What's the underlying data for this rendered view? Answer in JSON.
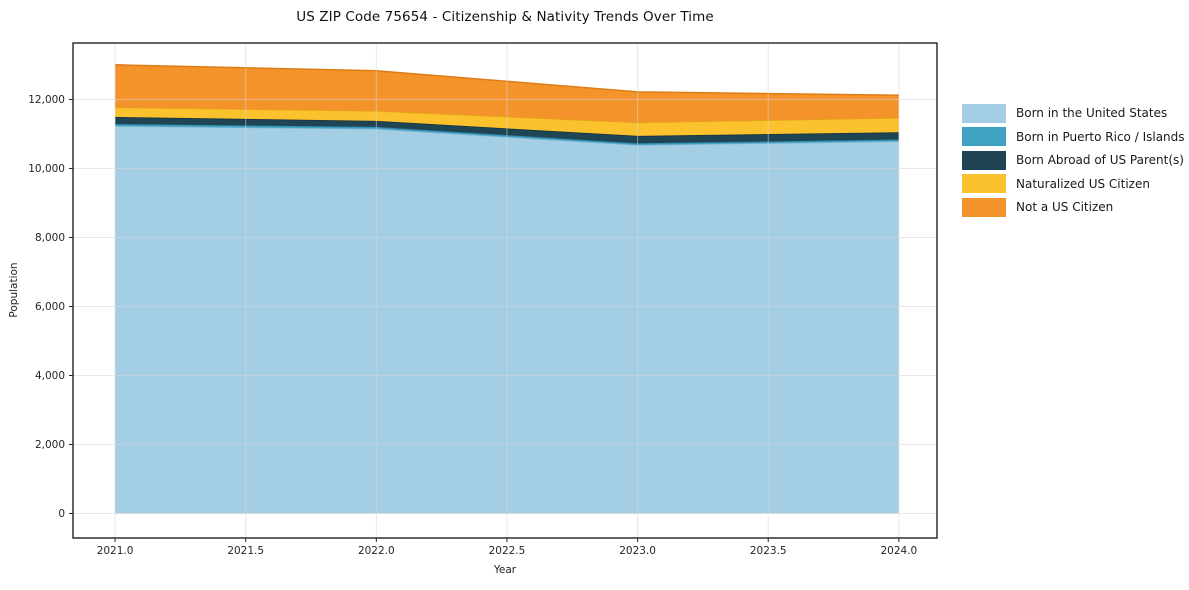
{
  "figure": {
    "title": "US ZIP Code 75654 - Citizenship & Nativity Trends Over Time",
    "xlabel": "Year",
    "ylabel": "Population"
  },
  "chart_data": {
    "type": "area",
    "stacked": true,
    "title": "US ZIP Code 75654 - Citizenship & Nativity Trends Over Time",
    "xlabel": "Year",
    "ylabel": "Population",
    "grid": true,
    "legend_position": "right-outside",
    "x": [
      2021,
      2022,
      2023,
      2024
    ],
    "series": [
      {
        "name": "Born in the United States",
        "color": "#a4cee3",
        "edge": "#7fb5d5",
        "values": [
          11230,
          11150,
          10680,
          10790
        ]
      },
      {
        "name": "Born in Puerto Rico / Islands",
        "color": "#41a1c2",
        "edge": "#2d86a6",
        "values": [
          60,
          55,
          50,
          50
        ]
      },
      {
        "name": "Born Abroad of US Parent(s)",
        "color": "#1f4554",
        "edge": "#16323d",
        "values": [
          205,
          175,
          215,
          210
        ]
      },
      {
        "name": "Naturalized US Citizen",
        "color": "#fbc22d",
        "edge": "#e2a618",
        "values": [
          275,
          290,
          390,
          415
        ]
      },
      {
        "name": "Not a US Citizen",
        "color": "#f5932b",
        "edge": "#dd7d15",
        "values": [
          1235,
          1160,
          885,
          655
        ]
      }
    ],
    "totals": [
      13005,
      12830,
      12220,
      12120
    ],
    "xlim": [
      2020.839,
      2024.146
    ],
    "ylim": [
      -710,
      13637
    ],
    "xticks": [
      2021.0,
      2021.5,
      2022.0,
      2022.5,
      2023.0,
      2023.5,
      2024.0
    ],
    "xtick_labels": [
      "2021.0",
      "2021.5",
      "2022.0",
      "2022.5",
      "2023.0",
      "2023.5",
      "2024.0"
    ],
    "yticks": [
      0,
      2000,
      4000,
      6000,
      8000,
      10000,
      12000
    ],
    "ytick_labels": [
      "0",
      "2,000",
      "4,000",
      "6,000",
      "8,000",
      "10,000",
      "12,000"
    ],
    "colors": {
      "grid": "#d6d6d6",
      "frame": "#111111",
      "tick": "#222222",
      "tick_label": "#262626",
      "background": "#ffffff"
    }
  }
}
